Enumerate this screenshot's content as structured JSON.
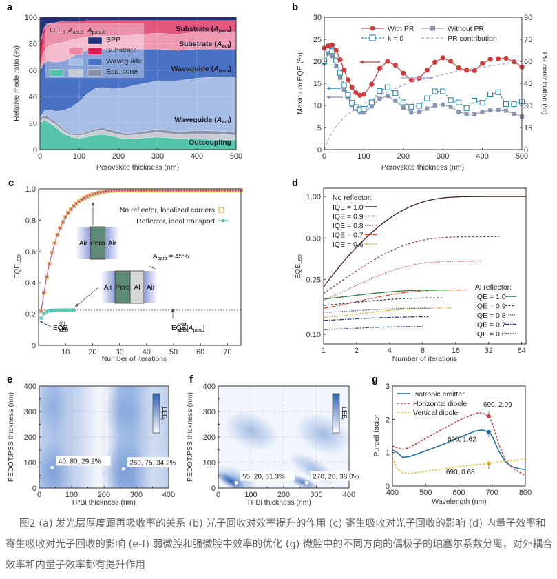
{
  "caption": "图2 (a) 发光层厚度跟再吸收率的关系 (b) 光子回收对效率提升的作用 (c) 寄生吸收对光子回收的影响 (d) 内量子效率和寄生吸收对光子回收的影响 (e-f) 弱微腔和强微腔中效率的优化 (g) 微腔中的不同方向的偶极子的珀塞尔系数分离，对外耦合效率和内量子效率都有提升作用",
  "chart_data": [
    {
      "id": "a",
      "panel_label": "a",
      "type": "area",
      "title": "",
      "xlabel": "Perovskite thickness (nm)",
      "ylabel": "Relative mode ratio (%)",
      "xlim": [
        0,
        500
      ],
      "ylim": [
        0,
        100
      ],
      "xticks": [
        "0",
        "100",
        "200",
        "300",
        "400",
        "500"
      ],
      "yticks": [
        "0",
        "20",
        "40",
        "60",
        "80",
        "100"
      ],
      "x": [
        0,
        10,
        20,
        40,
        60,
        80,
        100,
        120,
        140,
        160,
        180,
        200,
        220,
        250,
        300,
        350,
        400,
        450,
        500
      ],
      "boundaries": [
        {
          "name": "Outcoupling top",
          "values": [
            20,
            22,
            21,
            17,
            12,
            9.5,
            8.5,
            9.5,
            11,
            11.5,
            10.5,
            9,
            8,
            8.5,
            9.5,
            8.5,
            8,
            7.5,
            7.5
          ],
          "color": "#55c4ab"
        },
        {
          "name": "Esc. cone (act) top",
          "values": [
            22,
            24,
            23,
            19,
            14,
            11,
            10.5,
            12,
            14,
            14.5,
            13,
            11.5,
            10.5,
            11.5,
            13,
            11.5,
            12,
            11.5,
            11
          ]
        },
        {
          "name": "Esc. cone (para) top",
          "values": [
            23,
            26,
            25,
            21,
            15.5,
            12,
            11.5,
            13.5,
            15.5,
            16.5,
            15,
            13.5,
            12,
            13,
            15.5,
            13.5,
            14.5,
            14,
            13
          ]
        },
        {
          "name": "Waveguide (act) top",
          "values": [
            24,
            29,
            30,
            29,
            29.5,
            32,
            36,
            42,
            46,
            47,
            46,
            46,
            47,
            49,
            52,
            52,
            54,
            55,
            55
          ]
        },
        {
          "name": "Waveguide (para) top",
          "values": [
            60,
            65,
            67,
            66,
            67,
            70,
            73,
            75,
            76,
            76,
            76,
            76,
            76,
            76,
            76,
            75,
            76,
            76,
            76
          ]
        },
        {
          "name": "Substrate (act) top",
          "values": [
            62,
            74,
            78,
            80,
            81,
            83,
            84,
            85,
            86,
            86,
            86,
            86,
            86,
            87,
            88,
            87,
            89,
            89,
            89
          ]
        },
        {
          "name": "Substrate (para) top",
          "values": [
            80,
            92,
            95,
            96,
            97,
            97,
            97,
            97.5,
            97.5,
            97.5,
            97.5,
            97.5,
            97.5,
            97.5,
            97.5,
            97.5,
            97.5,
            97.5,
            97.5
          ]
        },
        {
          "name": "SPP top",
          "values": [
            100,
            100,
            100,
            100,
            100,
            100,
            100,
            100,
            100,
            100,
            100,
            100,
            100,
            100,
            100,
            100,
            100,
            100,
            100
          ]
        }
      ],
      "region_labels": [
        "Substrate (Apara)",
        "Substrate (Aact)",
        "Waveguide (Apara)",
        "Waveguide (Aact)",
        "Outcoupling"
      ],
      "legend": {
        "columns": [
          "LEE0",
          "Aact,0",
          "Apara,0"
        ],
        "rows": [
          "SPP",
          "Substrate",
          "Waveguide",
          "Esc. cone"
        ],
        "colors": {
          "SPP": [
            "",
            "",
            "#22307a"
          ],
          "Substrate": [
            "",
            "#ef86a4",
            "#d81e4e"
          ],
          "Waveguide": [
            "",
            "#a6bde6",
            "#4a72c4"
          ],
          "Esc. cone": [
            "#55c4ab",
            "#c9ccd4",
            "#8a93a8"
          ]
        }
      }
    },
    {
      "id": "b",
      "panel_label": "b",
      "type": "line",
      "xlabel": "Perovskite thickness (nm)",
      "ylabel": "Maximum EQE (%)",
      "y2label": "PR contribution (%)",
      "xlim": [
        0,
        500
      ],
      "ylim": [
        0,
        30
      ],
      "y2lim": [
        0,
        90
      ],
      "xticks": [
        "0",
        "100",
        "200",
        "300",
        "400",
        "500"
      ],
      "yticks": [
        "0",
        "5",
        "10",
        "15",
        "20",
        "25",
        "30"
      ],
      "y2ticks": [
        "0",
        "15",
        "30",
        "45",
        "60",
        "75",
        "90"
      ],
      "x": [
        0,
        10,
        20,
        30,
        40,
        50,
        60,
        70,
        80,
        90,
        100,
        120,
        140,
        160,
        180,
        200,
        220,
        240,
        260,
        280,
        300,
        320,
        340,
        360,
        380,
        400,
        420,
        440,
        460,
        480,
        500
      ],
      "series": [
        {
          "name": "With PR",
          "color": "#d03a3a",
          "marker": "circle",
          "values": [
            23,
            23.5,
            23.7,
            22.5,
            20.4,
            18,
            15.8,
            14.1,
            12.9,
            12.3,
            12.5,
            14.8,
            18.4,
            20,
            19.1,
            17.3,
            15.8,
            16.2,
            18,
            19.8,
            20.8,
            20,
            18.5,
            18,
            17.9,
            19.5,
            20.5,
            20.6,
            20.7,
            19.9,
            18.7
          ]
        },
        {
          "name": "Without PR",
          "color": "#8a94b0",
          "marker": "square-filled",
          "values": [
            19.5,
            21.8,
            21.2,
            18.9,
            16.3,
            13.6,
            11.8,
            10.1,
            9.2,
            8.4,
            8.4,
            9.8,
            11.5,
            12.2,
            11.1,
            9.5,
            8.4,
            8.5,
            9.3,
            10,
            10.2,
            9.7,
            8.6,
            8,
            8,
            8.5,
            8.9,
            8.9,
            8.8,
            8.1,
            7.5
          ]
        },
        {
          "name": "k = 0",
          "color": "#2a8bb0",
          "marker": "square-open",
          "dashed": true,
          "values": [
            20,
            22.7,
            22.3,
            20.2,
            17.4,
            14.6,
            12.4,
            10.6,
            9.6,
            9.1,
            9.2,
            10.7,
            13.3,
            14.1,
            12.8,
            10.7,
            9.7,
            9.9,
            11.6,
            13.2,
            13.2,
            11.2,
            10.7,
            9.4,
            11.1,
            10.6,
            12.5,
            13,
            10.3,
            10.3,
            10.9
          ]
        },
        {
          "name": "PR contribution",
          "color": "#a59ad6",
          "axis": "right",
          "dashed": true,
          "x": [
            0,
            10,
            25,
            50,
            75,
            100,
            150,
            200,
            250,
            300,
            350,
            400,
            450,
            500
          ],
          "values": [
            0,
            7,
            14,
            22,
            27,
            31,
            38,
            44,
            48,
            51,
            54,
            56,
            58,
            61
          ]
        }
      ],
      "legend": [
        "With PR",
        "Without PR",
        "k = 0",
        "PR contribution"
      ]
    },
    {
      "id": "c",
      "panel_label": "c",
      "type": "scatter",
      "xlabel": "Number of iterations",
      "ylabel": "EQE_LED",
      "xlim": [
        0,
        75
      ],
      "ylim": [
        0,
        1.0
      ],
      "xticks": [
        "10",
        "20",
        "30",
        "40",
        "50",
        "60",
        "70"
      ],
      "yticks": [
        "0",
        "0.2",
        "0.4",
        "0.6",
        "0.8",
        "1.0"
      ],
      "series": [
        {
          "name": "No reflector, localized carriers",
          "color": "#e0a63a",
          "marker": "square-open",
          "formula": "1-(1-0.22)*0.85^(n-1)",
          "n_range": [
            1,
            75
          ]
        },
        {
          "name": "Reflector, ideal transport",
          "color": "#3cbcaa",
          "marker": "circle",
          "formula": "0.225-0.05*0.45^(n-1)",
          "n_range": [
            1,
            13
          ]
        }
      ],
      "reference_line": {
        "label": "EQE_LED^max[A_para]",
        "value": 0.225
      },
      "annotations": [
        "EQE_LED^(0)",
        "A_para = 45%"
      ],
      "insets": [
        {
          "layers": [
            "Air",
            "Pero",
            "Air"
          ]
        },
        {
          "layers": [
            "Air",
            "Pero",
            "Al",
            "Air"
          ]
        }
      ],
      "legend": [
        "No reflector, localized carriers",
        "Reflector, ideal transport"
      ]
    },
    {
      "id": "d",
      "panel_label": "d",
      "type": "line",
      "xlabel": "Number of iterations",
      "ylabel": "EQE_LED",
      "xscale": "log2",
      "yscale": "log",
      "xlim": [
        1,
        70
      ],
      "ylim": [
        0.085,
        1.15
      ],
      "xticks": [
        "1",
        "2",
        "4",
        "8",
        "16",
        "32",
        "64"
      ],
      "yticks": [
        "0.10",
        "0.25",
        "0.50",
        "1.00"
      ],
      "groups": [
        {
          "title": "No reflector:",
          "series": [
            {
              "name": "IQE = 1.0",
              "color": "#4a1e1e",
              "style": "solid",
              "start": 0.22,
              "end": 1.0,
              "xend": 70
            },
            {
              "name": "IQE = 0.9",
              "color": "#a33a3a",
              "style": "dashed",
              "start": 0.198,
              "end": 0.51,
              "xend": 40
            },
            {
              "name": "IQE = 0.8",
              "color": "#c2505a",
              "style": "dotted",
              "start": 0.176,
              "end": 0.34,
              "xend": 27
            },
            {
              "name": "IQE = 0.7",
              "color": "#e0482e",
              "style": "dashdot",
              "start": 0.154,
              "end": 0.21,
              "xend": 20
            },
            {
              "name": "IQE = 0.6",
              "color": "#e6a83a",
              "style": "dashdotdot",
              "start": 0.132,
              "end": 0.155,
              "xend": 15
            }
          ]
        },
        {
          "title": "Al reflector:",
          "series": [
            {
              "name": "IQE = 1.0",
              "color": "#2f7a3a",
              "style": "solid",
              "start": 0.18,
              "end": 0.21,
              "xend": 14
            },
            {
              "name": "IQE = 0.9",
              "color": "#2c3a6a",
              "style": "dashed",
              "start": 0.162,
              "end": 0.184,
              "xend": 12
            },
            {
              "name": "IQE = 0.8",
              "color": "#3a4a7a",
              "style": "dotted",
              "start": 0.144,
              "end": 0.155,
              "xend": 10
            },
            {
              "name": "IQE = 0.7",
              "color": "#2a3a7a",
              "style": "dashdot",
              "start": 0.126,
              "end": 0.134,
              "xend": 9
            },
            {
              "name": "IQE = 0.6",
              "color": "#3b5a9a",
              "style": "dashdotdot",
              "start": 0.108,
              "end": 0.114,
              "xend": 8
            }
          ]
        }
      ]
    },
    {
      "id": "e",
      "panel_label": "e",
      "type": "heatmap",
      "xlabel": "TPBi thickness (nm)",
      "ylabel": "PEDOT:PSS thickness (nm)",
      "xlim": [
        0,
        400
      ],
      "ylim": [
        0,
        400
      ],
      "xticks": [
        "0",
        "100",
        "200",
        "300",
        "400"
      ],
      "yticks": [
        "0",
        "100",
        "200",
        "300",
        "400"
      ],
      "colorbar_label": "LEE0",
      "points": [
        {
          "x": 40,
          "y": 80,
          "label": "40, 80, 29.2%"
        },
        {
          "x": 260,
          "y": 75,
          "label": "260, 75, 34.2%"
        }
      ]
    },
    {
      "id": "f",
      "panel_label": "f",
      "type": "heatmap",
      "xlabel": "TPBi thickness (nm)",
      "ylabel": "PEDOT:PSS thickness (nm)",
      "xlim": [
        0,
        400
      ],
      "ylim": [
        0,
        400
      ],
      "xticks": [
        "0",
        "100",
        "200",
        "300",
        "400"
      ],
      "yticks": [
        "0",
        "100",
        "200",
        "300",
        "400"
      ],
      "colorbar_label": "LEE0",
      "points": [
        {
          "x": 55,
          "y": 20,
          "label": "55, 20, 51.3%"
        },
        {
          "x": 270,
          "y": 20,
          "label": "270, 20, 38.0%"
        }
      ]
    },
    {
      "id": "g",
      "panel_label": "g",
      "type": "line",
      "xlabel": "Wavelength (nm)",
      "ylabel": "Purcell factor",
      "xlim": [
        400,
        800
      ],
      "ylim": [
        0,
        3
      ],
      "xticks": [
        "400",
        "500",
        "600",
        "700",
        "800"
      ],
      "yticks": [
        "0",
        "1",
        "2",
        "3"
      ],
      "x": [
        400,
        415,
        430,
        450,
        500,
        550,
        600,
        650,
        670,
        690,
        700,
        720,
        740,
        760,
        780,
        800
      ],
      "series": [
        {
          "name": "Isotropic emitter",
          "color": "#1f6fa8",
          "style": "solid",
          "values": [
            1.08,
            1.0,
            0.86,
            0.88,
            1.05,
            1.24,
            1.45,
            1.65,
            1.68,
            1.62,
            1.5,
            1.05,
            0.72,
            0.58,
            0.52,
            0.49
          ]
        },
        {
          "name": "Horizontal dipole",
          "color": "#c94040",
          "style": "dashed",
          "values": [
            1.2,
            1.14,
            1.1,
            1.15,
            1.43,
            1.7,
            1.97,
            2.18,
            2.2,
            2.09,
            1.9,
            1.25,
            0.78,
            0.55,
            0.42,
            0.33
          ]
        },
        {
          "name": "Vertical dipole",
          "color": "#e8c040",
          "style": "dashed",
          "values": [
            0.85,
            0.5,
            0.4,
            0.37,
            0.44,
            0.51,
            0.58,
            0.64,
            0.66,
            0.68,
            0.69,
            0.72,
            0.74,
            0.76,
            0.78,
            0.8
          ]
        }
      ],
      "annotations": [
        {
          "x": 690,
          "y": 2.09,
          "label": "690, 2.09"
        },
        {
          "x": 690,
          "y": 1.62,
          "label": "690, 1.62"
        },
        {
          "x": 690,
          "y": 0.68,
          "label": "690, 0.68"
        }
      ],
      "legend": [
        "Isotropic emitter",
        "Horizontal dipole",
        "Vertical dipole"
      ]
    }
  ]
}
